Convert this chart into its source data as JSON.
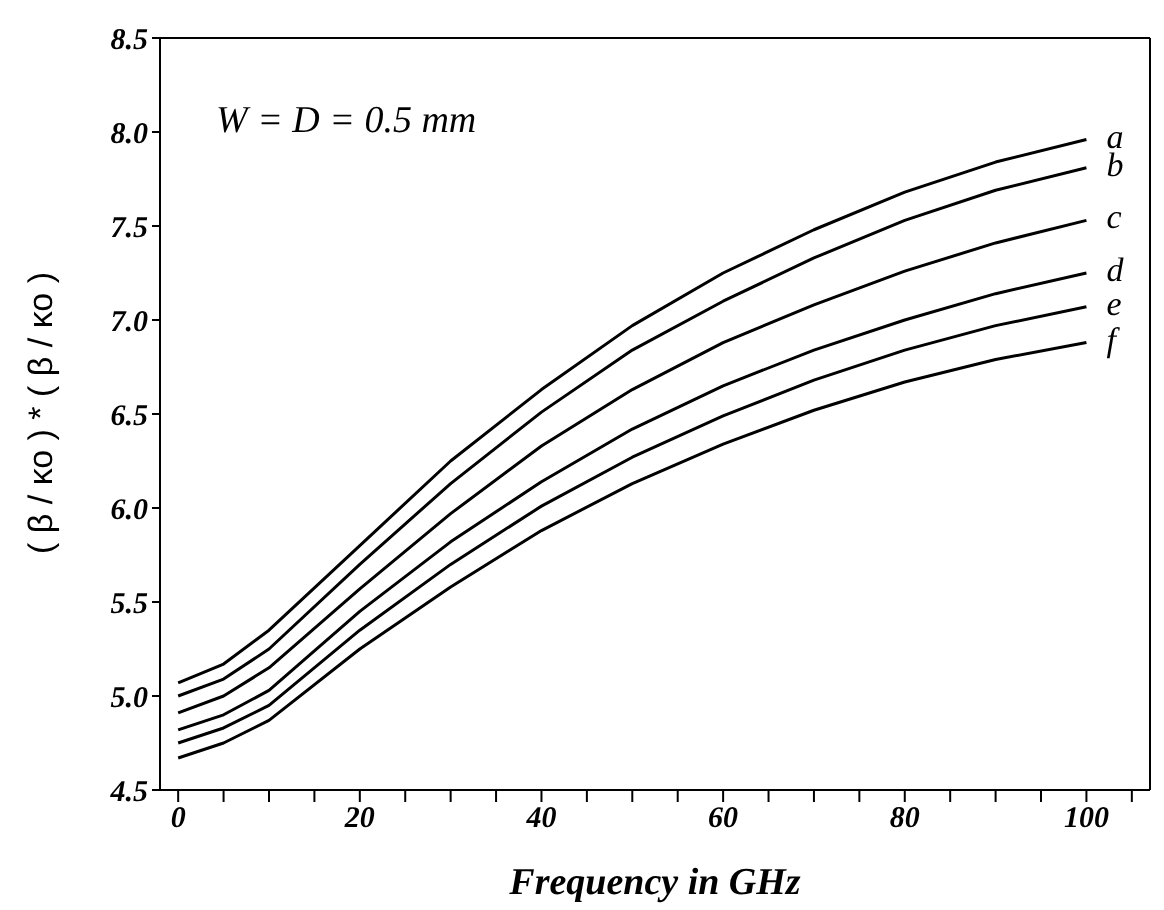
{
  "chart_data": {
    "type": "line",
    "xlabel": "Frequency in GHz",
    "ylabel": "( β / κο ) * ( β / κο )",
    "annotations": [
      "W = D = 0.5 mm"
    ],
    "x": [
      0,
      5,
      10,
      20,
      30,
      40,
      50,
      60,
      70,
      80,
      90,
      100
    ],
    "series": [
      {
        "name": "a",
        "color": "#000000",
        "values": [
          5.07,
          5.17,
          5.35,
          5.8,
          6.25,
          6.63,
          6.97,
          7.25,
          7.48,
          7.68,
          7.84,
          7.96
        ]
      },
      {
        "name": "b",
        "color": "#000000",
        "values": [
          5.0,
          5.09,
          5.25,
          5.7,
          6.13,
          6.51,
          6.84,
          7.1,
          7.33,
          7.53,
          7.69,
          7.81
        ]
      },
      {
        "name": "c",
        "color": "#000000",
        "values": [
          4.91,
          5.0,
          5.15,
          5.57,
          5.97,
          6.33,
          6.63,
          6.88,
          7.08,
          7.26,
          7.41,
          7.53
        ]
      },
      {
        "name": "d",
        "color": "#000000",
        "values": [
          4.82,
          4.9,
          5.03,
          5.45,
          5.82,
          6.14,
          6.42,
          6.65,
          6.84,
          7.0,
          7.14,
          7.25
        ]
      },
      {
        "name": "e",
        "color": "#000000",
        "values": [
          4.75,
          4.83,
          4.95,
          5.35,
          5.7,
          6.01,
          6.27,
          6.49,
          6.68,
          6.84,
          6.97,
          7.07
        ]
      },
      {
        "name": "f",
        "color": "#000000",
        "values": [
          4.67,
          4.75,
          4.87,
          5.25,
          5.58,
          5.88,
          6.13,
          6.34,
          6.52,
          6.67,
          6.79,
          6.88
        ]
      }
    ],
    "xlim": [
      -2,
      107
    ],
    "xticks": [
      0,
      {
        "value": 5,
        "label": null
      },
      {
        "value": 10,
        "label": null
      },
      {
        "value": 15,
        "label": null
      },
      20,
      {
        "value": 25,
        "label": null
      },
      {
        "value": 30,
        "label": null
      },
      {
        "value": 35,
        "label": null
      },
      40,
      {
        "value": 45,
        "label": null
      },
      {
        "value": 50,
        "label": null
      },
      {
        "value": 55,
        "label": null
      },
      60,
      {
        "value": 65,
        "label": null
      },
      {
        "value": 70,
        "label": null
      },
      {
        "value": 75,
        "label": null
      },
      80,
      {
        "value": 85,
        "label": null
      },
      {
        "value": 90,
        "label": null
      },
      {
        "value": 95,
        "label": null
      },
      100,
      {
        "value": 105,
        "label": null
      }
    ],
    "ylim": [
      4.5,
      8.5
    ],
    "yticks": [
      4.5,
      {
        "value": 5,
        "label": "5.0"
      },
      5.5,
      {
        "value": 6,
        "label": "6.0"
      },
      6.5,
      {
        "value": 7,
        "label": "7.0"
      },
      7.5,
      {
        "value": 8,
        "label": "8.0"
      },
      8.5
    ],
    "grid": false,
    "legend": false,
    "marker": "none",
    "line_style": "solid"
  }
}
